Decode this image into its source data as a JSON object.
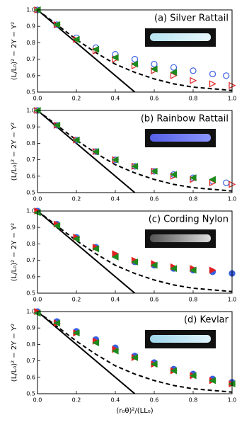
{
  "chart_data": [
    {
      "type": "scatter",
      "title": "(a) Silver Rattail",
      "ylabel": "(L/L₀)² − 2Y − Y²",
      "xlim": [
        0,
        1
      ],
      "ylim": [
        0.5,
        1.0
      ],
      "xticks": [
        {
          "value": 0,
          "label": "0.0"
        },
        0.2,
        0.4,
        0.6,
        0.8,
        {
          "value": 1,
          "label": "1.0"
        }
      ],
      "yticks": [
        0.5,
        0.6,
        0.7,
        0.8,
        0.9,
        {
          "value": 1,
          "label": "1.0"
        }
      ],
      "series": [
        {
          "color": "#000000",
          "style": "solid",
          "x": [
            0,
            0.5
          ],
          "values": [
            1.0,
            0.5
          ]
        },
        {
          "color": "#000000",
          "style": "dashed",
          "x": [
            0,
            0.1,
            0.2,
            0.3,
            0.4,
            0.5,
            0.6,
            0.7,
            0.8,
            0.9,
            1.0
          ],
          "values": [
            1.0,
            0.91,
            0.82,
            0.74,
            0.67,
            0.62,
            0.58,
            0.55,
            0.53,
            0.52,
            0.51
          ]
        },
        {
          "color": "#3a5fe0",
          "marker": "circle",
          "filled": false,
          "x": [
            0,
            0.1,
            0.2,
            0.3,
            0.4,
            0.5,
            0.6,
            0.7,
            0.8,
            0.9,
            0.97
          ],
          "values": [
            1.0,
            0.91,
            0.83,
            0.77,
            0.73,
            0.7,
            0.67,
            0.65,
            0.63,
            0.61,
            0.6
          ]
        },
        {
          "color": "#e02020",
          "marker": "triangle-right",
          "filled": false,
          "x": [
            0,
            0.1,
            0.2,
            0.3,
            0.4,
            0.5,
            0.6,
            0.7,
            0.8,
            0.9,
            1.0
          ],
          "values": [
            1.0,
            0.91,
            0.82,
            0.75,
            0.7,
            0.66,
            0.63,
            0.6,
            0.57,
            0.55,
            0.54
          ]
        },
        {
          "color": "#1e8a1e",
          "marker": "triangle-left",
          "filled": true,
          "x": [
            0,
            0.1,
            0.2,
            0.3,
            0.4,
            0.5,
            0.6,
            0.7
          ],
          "values": [
            1.0,
            0.91,
            0.82,
            0.76,
            0.71,
            0.67,
            0.64,
            0.62
          ]
        }
      ]
    },
    {
      "type": "scatter",
      "title": "(b) Rainbow Rattail",
      "ylabel": "(L/L₀)² − 2Y − Y²",
      "xlim": [
        0,
        1
      ],
      "ylim": [
        0.5,
        1.0
      ],
      "xticks": [
        {
          "value": 0,
          "label": "0.0"
        },
        0.2,
        0.4,
        0.6,
        0.8,
        {
          "value": 1,
          "label": "1.0"
        }
      ],
      "yticks": [
        0.5,
        0.6,
        0.7,
        0.8,
        0.9,
        {
          "value": 1,
          "label": "1.0"
        }
      ],
      "series": [
        {
          "color": "#000000",
          "style": "solid",
          "x": [
            0,
            0.5
          ],
          "values": [
            1.0,
            0.5
          ]
        },
        {
          "color": "#000000",
          "style": "dashed",
          "x": [
            0,
            0.1,
            0.2,
            0.3,
            0.4,
            0.5,
            0.6,
            0.7,
            0.8,
            0.9,
            1.0
          ],
          "values": [
            1.0,
            0.91,
            0.82,
            0.74,
            0.67,
            0.62,
            0.58,
            0.55,
            0.53,
            0.52,
            0.51
          ]
        },
        {
          "color": "#3a5fe0",
          "marker": "circle",
          "filled": false,
          "x": [
            0,
            0.1,
            0.2,
            0.3,
            0.4,
            0.5,
            0.6,
            0.7,
            0.8,
            0.9,
            0.97
          ],
          "values": [
            1.0,
            0.91,
            0.82,
            0.75,
            0.7,
            0.66,
            0.63,
            0.61,
            0.59,
            0.57,
            0.56
          ]
        },
        {
          "color": "#e02020",
          "marker": "triangle-right",
          "filled": false,
          "x": [
            0,
            0.1,
            0.2,
            0.3,
            0.4,
            0.5,
            0.6,
            0.7,
            0.8,
            0.9,
            1.0
          ],
          "values": [
            1.0,
            0.91,
            0.82,
            0.75,
            0.7,
            0.66,
            0.63,
            0.6,
            0.58,
            0.56,
            0.55
          ]
        },
        {
          "color": "#1e8a1e",
          "marker": "triangle-left",
          "filled": true,
          "x": [
            0,
            0.1,
            0.2,
            0.3,
            0.4,
            0.5,
            0.6,
            0.7,
            0.8,
            0.9
          ],
          "values": [
            1.0,
            0.91,
            0.82,
            0.75,
            0.7,
            0.66,
            0.63,
            0.61,
            0.59,
            0.58
          ]
        }
      ]
    },
    {
      "type": "scatter",
      "title": "(c) Cording Nylon",
      "ylabel": "(L/L₀)² − 2Y − Y²",
      "xlim": [
        0,
        1
      ],
      "ylim": [
        0.5,
        1.0
      ],
      "xticks": [
        {
          "value": 0,
          "label": "0.0"
        },
        0.2,
        0.4,
        0.6,
        0.8,
        {
          "value": 1,
          "label": "1.0"
        }
      ],
      "yticks": [
        0.5,
        0.6,
        0.7,
        0.8,
        0.9,
        {
          "value": 1,
          "label": "1.0"
        }
      ],
      "series": [
        {
          "color": "#000000",
          "style": "solid",
          "x": [
            0,
            0.5
          ],
          "values": [
            1.0,
            0.5
          ]
        },
        {
          "color": "#000000",
          "style": "dashed",
          "x": [
            0,
            0.1,
            0.2,
            0.3,
            0.4,
            0.5,
            0.6,
            0.7,
            0.8,
            0.9,
            1.0
          ],
          "values": [
            1.0,
            0.91,
            0.82,
            0.74,
            0.67,
            0.62,
            0.58,
            0.55,
            0.53,
            0.52,
            0.51
          ]
        },
        {
          "color": "#3a5fe0",
          "marker": "circle",
          "filled": true,
          "x": [
            0,
            0.1,
            0.2,
            0.3,
            0.4,
            0.5,
            0.6,
            0.7,
            0.8,
            0.9,
            1.0
          ],
          "values": [
            1.0,
            0.92,
            0.84,
            0.78,
            0.73,
            0.69,
            0.67,
            0.65,
            0.64,
            0.63,
            0.62
          ]
        },
        {
          "color": "#e02020",
          "marker": "triangle-right",
          "filled": true,
          "x": [
            0,
            0.1,
            0.2,
            0.3,
            0.4,
            0.5,
            0.6,
            0.7,
            0.8,
            0.9
          ],
          "values": [
            1.0,
            0.92,
            0.84,
            0.78,
            0.74,
            0.7,
            0.68,
            0.66,
            0.65,
            0.64
          ]
        },
        {
          "color": "#1e8a1e",
          "marker": "triangle-left",
          "filled": true,
          "x": [
            0,
            0.1,
            0.2,
            0.3,
            0.4,
            0.5,
            0.6,
            0.7,
            0.8
          ],
          "values": [
            0.99,
            0.91,
            0.83,
            0.77,
            0.72,
            0.69,
            0.67,
            0.65,
            0.64
          ]
        }
      ]
    },
    {
      "type": "scatter",
      "title": "(d) Kevlar",
      "ylabel": "(L/L₀)² − 2Y − Y²",
      "xlabel": "(r₀θ)²/(LL₀)",
      "xlim": [
        0,
        1
      ],
      "ylim": [
        0.5,
        1.0
      ],
      "xticks": [
        {
          "value": 0,
          "label": "0.0"
        },
        0.2,
        0.4,
        0.6,
        0.8,
        {
          "value": 1,
          "label": "1.0"
        }
      ],
      "yticks": [
        0.5,
        0.6,
        0.7,
        0.8,
        0.9,
        {
          "value": 1,
          "label": "1.0"
        }
      ],
      "series": [
        {
          "color": "#000000",
          "style": "solid",
          "x": [
            0,
            0.5
          ],
          "values": [
            1.0,
            0.5
          ]
        },
        {
          "color": "#000000",
          "style": "dashed",
          "x": [
            0,
            0.1,
            0.2,
            0.3,
            0.4,
            0.5,
            0.6,
            0.7,
            0.8,
            0.9,
            1.0
          ],
          "values": [
            1.0,
            0.91,
            0.82,
            0.74,
            0.67,
            0.62,
            0.58,
            0.55,
            0.53,
            0.52,
            0.51
          ]
        },
        {
          "color": "#3a5fe0",
          "marker": "circle",
          "filled": true,
          "x": [
            0,
            0.1,
            0.2,
            0.3,
            0.4,
            0.5,
            0.6,
            0.7,
            0.8,
            0.9,
            1.0
          ],
          "values": [
            1.0,
            0.94,
            0.88,
            0.83,
            0.78,
            0.73,
            0.69,
            0.65,
            0.62,
            0.59,
            0.57
          ]
        },
        {
          "color": "#e02020",
          "marker": "triangle-right",
          "filled": true,
          "x": [
            0,
            0.1,
            0.2,
            0.3,
            0.4,
            0.5,
            0.6,
            0.7,
            0.8,
            0.9,
            1.0
          ],
          "values": [
            1.0,
            0.93,
            0.87,
            0.82,
            0.77,
            0.72,
            0.68,
            0.64,
            0.61,
            0.58,
            0.56
          ]
        },
        {
          "color": "#1e8a1e",
          "marker": "triangle-left",
          "filled": true,
          "x": [
            0,
            0.1,
            0.2,
            0.3,
            0.4,
            0.5,
            0.6,
            0.7,
            0.8,
            0.9,
            1.0
          ],
          "values": [
            0.99,
            0.93,
            0.87,
            0.81,
            0.76,
            0.72,
            0.68,
            0.64,
            0.61,
            0.58,
            0.56
          ]
        }
      ]
    }
  ]
}
